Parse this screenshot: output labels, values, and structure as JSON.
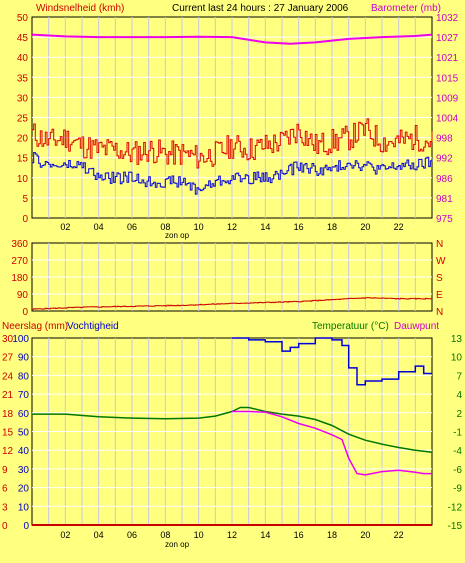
{
  "header": {
    "left_label": "Windsnelheid (kmh)",
    "title": "Current last 24 hours : 27 January 2006",
    "right_label": "Barometer (mb)"
  },
  "colors": {
    "background": "#ffff80",
    "plot_background": "#ffff80",
    "grid_vertical": "#c8c8e6",
    "grid_horizontal": "#ffffff",
    "wind_avg": "#0000dd",
    "wind_gust": "#dd0000",
    "barometer": "#ee00ee",
    "direction": "#cc0000",
    "rain": "#cc0000",
    "humidity": "#0000dd",
    "temperature": "#007700",
    "dewpoint": "#ee00ee",
    "left_text": "#cc0000",
    "right_text_top": "#cc00cc",
    "right_text_bottom": "#007700"
  },
  "chart_data": [
    {
      "type": "line",
      "name": "wind-barometer",
      "x_ticks": [
        "02",
        "04",
        "06",
        "08",
        "10",
        "12",
        "14",
        "16",
        "18",
        "20",
        "22"
      ],
      "x_sublabel": "zon op",
      "ylabel_left": "Windsnelheid (kmh)",
      "ylabel_right": "Barometer (mb)",
      "ylim_left": [
        0,
        50
      ],
      "yticks_left": [
        "0",
        "5",
        "10",
        "15",
        "20",
        "25",
        "30",
        "35",
        "40",
        "45",
        "50"
      ],
      "ylim_right": [
        975,
        1032
      ],
      "yticks_right": [
        "975",
        "981",
        "986",
        "992",
        "998",
        "1004",
        "1009",
        "1015",
        "1021",
        "1027",
        "1032"
      ],
      "series": [
        {
          "key": "barometer",
          "axis": "right",
          "x": [
            0,
            2,
            4,
            6,
            8,
            10,
            12,
            14,
            15.5,
            17,
            19,
            21,
            23,
            24
          ],
          "values": [
            1027,
            1026.5,
            1026.3,
            1026.3,
            1026.3,
            1026.4,
            1026.3,
            1024.8,
            1024.4,
            1024.8,
            1025.8,
            1026.3,
            1026.6,
            1027
          ]
        },
        {
          "key": "wind_gust",
          "axis": "left",
          "x": [
            0,
            1,
            2,
            3,
            4,
            5,
            6,
            7,
            8,
            9,
            10,
            11,
            12,
            13,
            14,
            15,
            16,
            17,
            18,
            19,
            20,
            21,
            22,
            23,
            24
          ],
          "values": [
            21,
            19,
            20,
            18,
            17,
            17,
            16,
            17,
            16,
            16,
            15,
            16,
            18,
            17,
            18,
            19,
            22,
            18,
            19,
            20,
            22,
            19,
            19,
            20,
            19
          ]
        },
        {
          "key": "wind_avg",
          "axis": "left",
          "x": [
            0,
            1,
            2,
            3,
            4,
            5,
            6,
            7,
            8,
            9,
            10,
            11,
            12,
            13,
            14,
            15,
            16,
            17,
            18,
            19,
            20,
            21,
            22,
            23,
            24
          ],
          "values": [
            15,
            13,
            13,
            13,
            10,
            10,
            10,
            9,
            9,
            9,
            7,
            9,
            10,
            10,
            10,
            11,
            13,
            12,
            12,
            14,
            13,
            12,
            13,
            13,
            14
          ]
        }
      ]
    },
    {
      "type": "line",
      "name": "wind-direction",
      "x_ticks": [
        "02",
        "04",
        "06",
        "08",
        "10",
        "12",
        "14",
        "16",
        "18",
        "20",
        "22"
      ],
      "ylim_left": [
        0,
        360
      ],
      "yticks_left": [
        "0",
        "90",
        "180",
        "270",
        "360"
      ],
      "yticks_right": [
        "N",
        "E",
        "S",
        "W",
        "N"
      ],
      "series": [
        {
          "key": "direction",
          "x": [
            0,
            3,
            6,
            9,
            12,
            14,
            16,
            18,
            20,
            22,
            24
          ],
          "values": [
            10,
            20,
            25,
            30,
            40,
            45,
            50,
            60,
            70,
            65,
            65
          ]
        }
      ]
    },
    {
      "type": "line",
      "name": "rain-humidity-temperature",
      "x_ticks": [
        "02",
        "04",
        "06",
        "08",
        "10",
        "12",
        "14",
        "16",
        "18",
        "20",
        "22"
      ],
      "x_sublabel": "zon op",
      "ylabel_left": "Neerslag (mm)",
      "ylabel_left2": "Vochtigheid",
      "ylabel_right": "Temperatuur (°C)",
      "ylabel_right2": "Dauwpunt",
      "ylim_left": [
        0,
        30
      ],
      "yticks_left": [
        "0",
        "3",
        "6",
        "9",
        "12",
        "15",
        "18",
        "21",
        "24",
        "27",
        "30"
      ],
      "ylim_humidity": [
        0,
        100
      ],
      "yticks_humidity": [
        "0",
        "10",
        "20",
        "30",
        "40",
        "50",
        "60",
        "70",
        "80",
        "90",
        "100"
      ],
      "ylim_right": [
        -15,
        13
      ],
      "yticks_right": [
        "-15",
        "-12",
        "-9",
        "-6",
        "-4",
        "-1",
        "2",
        "4",
        "7",
        "10",
        "13"
      ],
      "series": [
        {
          "key": "temperature",
          "axis": "right",
          "x": [
            0,
            2,
            4,
            6,
            8,
            10,
            11,
            12,
            12.5,
            13,
            14,
            15,
            16,
            17,
            18,
            19,
            20,
            21,
            22,
            23,
            24
          ],
          "values": [
            1.6,
            1.6,
            1.2,
            1.0,
            0.9,
            1.0,
            1.3,
            2.0,
            2.6,
            2.6,
            2.0,
            1.6,
            1.3,
            0.8,
            -0.1,
            -1.4,
            -2.3,
            -2.9,
            -3.4,
            -3.8,
            -4.1
          ]
        },
        {
          "key": "dewpoint",
          "axis": "right",
          "x": [
            12,
            13,
            14,
            15,
            16,
            17,
            18,
            18.6,
            19,
            19.5,
            20,
            21,
            22,
            23,
            23.5,
            24
          ],
          "values": [
            2.0,
            2.0,
            1.9,
            1.2,
            0.2,
            -0.5,
            -1.5,
            -2.2,
            -5.0,
            -7.3,
            -7.5,
            -7.0,
            -6.8,
            -7.1,
            -7.3,
            -7.3
          ]
        },
        {
          "key": "humidity",
          "axis": "humidity",
          "x": [
            12,
            13,
            14,
            15,
            15.5,
            16,
            17,
            18,
            18.6,
            19,
            19.5,
            20,
            21,
            22,
            23,
            23.5,
            24
          ],
          "values": [
            100,
            99,
            98,
            93,
            95,
            97,
            100,
            99,
            96,
            84,
            75,
            77,
            78,
            82,
            85,
            81,
            81
          ]
        },
        {
          "key": "rain",
          "axis": "left",
          "x": [
            0,
            24
          ],
          "values": [
            0,
            0
          ]
        }
      ]
    }
  ]
}
